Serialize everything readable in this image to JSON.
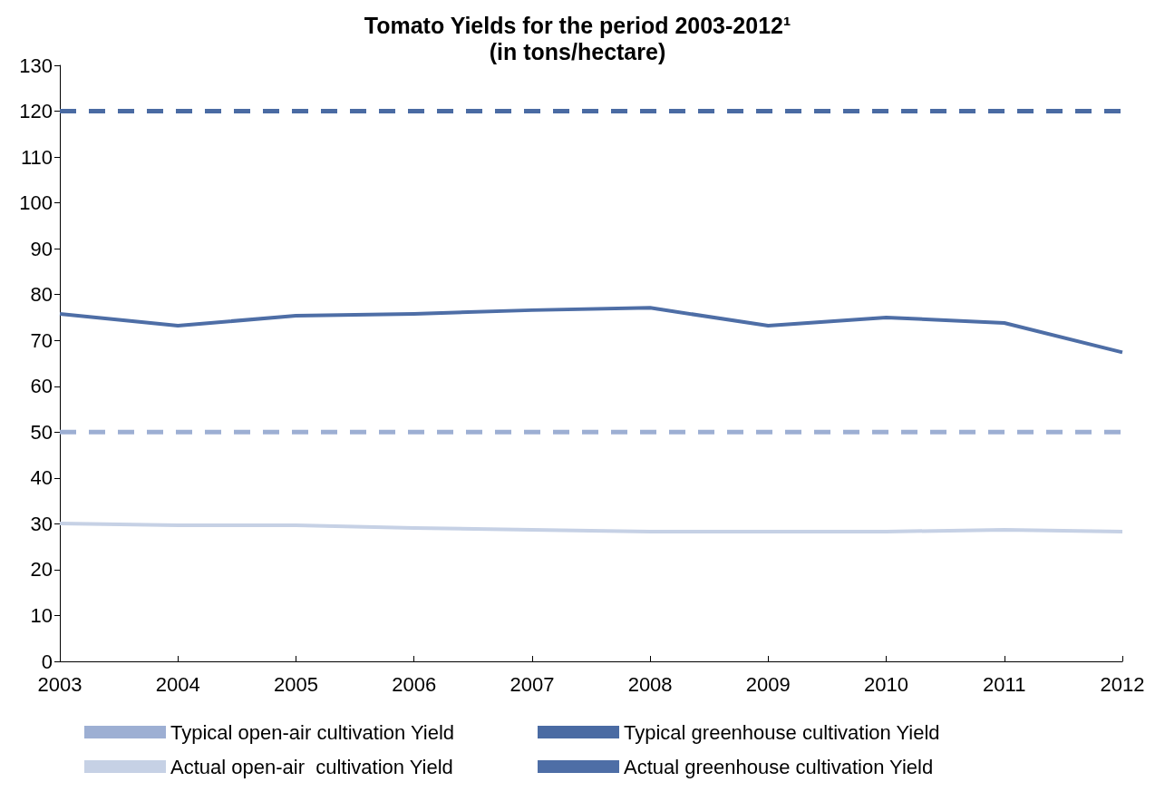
{
  "chart_data": {
    "type": "line",
    "title": "Tomato Yields for the period 2003-2012¹",
    "subtitle": "(in tons/hectare)",
    "categories": [
      "2003",
      "2004",
      "2005",
      "2006",
      "2007",
      "2008",
      "2009",
      "2010",
      "2011",
      "2012"
    ],
    "ylim": [
      0,
      130
    ],
    "yticks": [
      0,
      10,
      20,
      30,
      40,
      50,
      60,
      70,
      80,
      90,
      100,
      110,
      120,
      130
    ],
    "grid": false,
    "legend": "bottom",
    "marker": "none",
    "series": [
      {
        "name": "Typical open-air cultivation Yield",
        "color": "#9dafd3",
        "line_style": "dashed",
        "values": [
          50,
          50,
          50,
          50,
          50,
          50,
          50,
          50,
          50,
          50
        ]
      },
      {
        "name": "Typical greenhouse cultivation Yield",
        "color": "#4a6ba3",
        "line_style": "dashed",
        "values": [
          120,
          120,
          120,
          120,
          120,
          120,
          120,
          120,
          120,
          120
        ]
      },
      {
        "name": "Actual open-air  cultivation Yield",
        "color": "#c6d1e5",
        "line_style": "solid",
        "values": [
          30.1,
          29.7,
          29.7,
          29.1,
          28.7,
          28.3,
          28.3,
          28.3,
          28.7,
          28.3
        ]
      },
      {
        "name": "Actual greenhouse cultivation Yield",
        "color": "#4e6ea6",
        "line_style": "solid",
        "values": [
          75.8,
          73.2,
          75.4,
          75.8,
          76.6,
          77.1,
          73.2,
          75.0,
          73.8,
          67.4
        ]
      }
    ]
  }
}
